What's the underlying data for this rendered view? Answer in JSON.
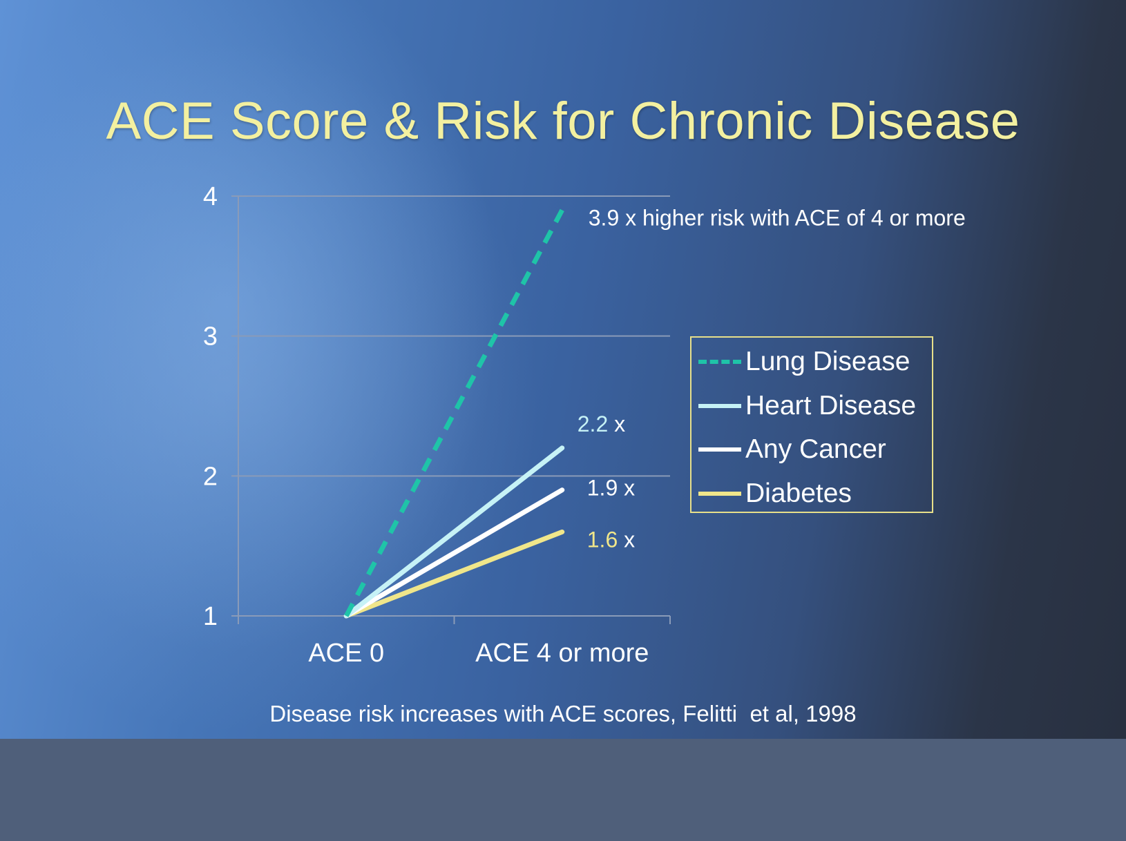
{
  "slide": {
    "title": "ACE Score & Risk for Chronic Disease",
    "caption": "Disease risk increases with ACE scores, Felitti  et al, 1998"
  },
  "colors": {
    "title": "#f3f0a0",
    "lung": "#1fc4a8",
    "heart": "#c6f2f6",
    "cancer": "#ffffff",
    "diabetes": "#f0e68a",
    "legend_border": "#e8e08a",
    "gridline": "#8a9bb8"
  },
  "chart_data": {
    "type": "line",
    "title": "ACE Score & Risk for Chronic Disease",
    "xlabel": "",
    "ylabel": "",
    "categories": [
      "ACE 0",
      "ACE 4 or more"
    ],
    "ylim": [
      1,
      4
    ],
    "yticks": [
      1,
      2,
      3,
      4
    ],
    "grid": true,
    "legend_position": "right",
    "series": [
      {
        "key": "lung",
        "name": "Lung Disease",
        "values": [
          1,
          3.9
        ],
        "style": "dashed",
        "annotation": "3.9 x higher risk with ACE of 4 or more"
      },
      {
        "key": "heart",
        "name": "Heart Disease",
        "values": [
          1,
          2.2
        ],
        "style": "solid",
        "annotation": "2.2 x"
      },
      {
        "key": "cancer",
        "name": "Any Cancer",
        "values": [
          1,
          1.9
        ],
        "style": "solid",
        "annotation": "1.9 x"
      },
      {
        "key": "diabetes",
        "name": "Diabetes",
        "values": [
          1,
          1.6
        ],
        "style": "solid",
        "annotation": "1.6 x"
      }
    ]
  }
}
